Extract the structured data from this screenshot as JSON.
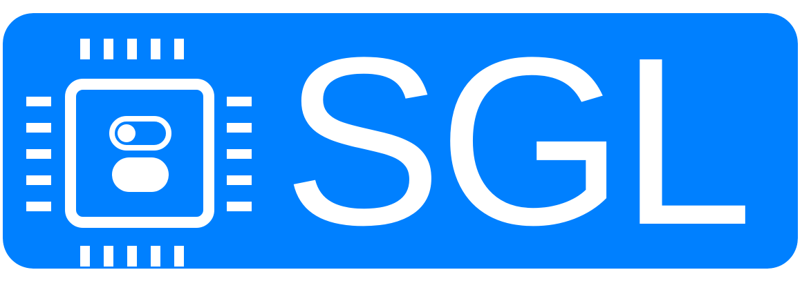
{
  "logo": {
    "wordmark": "SGL",
    "icon": "microchip-toggle-icon"
  },
  "colors": {
    "background": "#0080FF",
    "foreground": "#FFFFFF",
    "page": "#FFFFFF"
  }
}
